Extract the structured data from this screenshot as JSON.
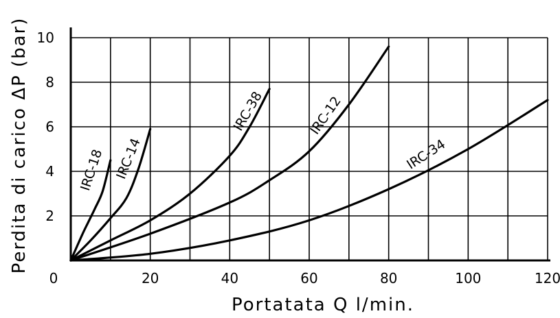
{
  "chart_data": {
    "type": "line",
    "title": "",
    "xlabel": "Portatata Q l/min.",
    "ylabel": "Perdita di carico ΔP (bar)",
    "xlim": [
      0,
      120
    ],
    "ylim": [
      0,
      10
    ],
    "xticks": [
      0,
      20,
      40,
      60,
      80,
      100,
      120
    ],
    "yticks": [
      2,
      4,
      6,
      8,
      10
    ],
    "grid": true,
    "x_grid_step": 10,
    "y_grid_step": 2,
    "series": [
      {
        "name": "IRC-18",
        "x": [
          0,
          3,
          6,
          8,
          10
        ],
        "y": [
          0,
          1.2,
          2.3,
          3.1,
          4.5
        ]
      },
      {
        "name": "IRC-14",
        "x": [
          0,
          5,
          10,
          14,
          17,
          20
        ],
        "y": [
          0,
          0.9,
          1.9,
          2.8,
          4.1,
          5.9
        ]
      },
      {
        "name": "IRC-38",
        "x": [
          0,
          10,
          20,
          30,
          40,
          45,
          50
        ],
        "y": [
          0,
          0.9,
          1.8,
          3.0,
          4.7,
          6.0,
          7.7
        ]
      },
      {
        "name": "IRC-12",
        "x": [
          0,
          20,
          40,
          50,
          60,
          70,
          80
        ],
        "y": [
          0,
          1.2,
          2.6,
          3.6,
          4.9,
          7.0,
          9.6
        ]
      },
      {
        "name": "IRC-34",
        "x": [
          0,
          20,
          40,
          60,
          80,
          100,
          120
        ],
        "y": [
          0,
          0.3,
          0.9,
          1.8,
          3.2,
          5.0,
          7.2
        ]
      }
    ]
  }
}
